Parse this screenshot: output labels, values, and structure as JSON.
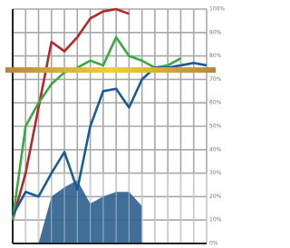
{
  "chart_data": {
    "type": "line",
    "categories": [
      null,
      null,
      null,
      null,
      null,
      null,
      null,
      null,
      null,
      null,
      null,
      null,
      null,
      null,
      null,
      null
    ],
    "series": [
      {
        "color": "#b02a2a",
        "values": [
          10,
          30,
          58,
          86,
          82,
          88,
          96,
          99,
          100,
          98,
          null,
          null,
          null,
          null,
          null,
          null
        ]
      },
      {
        "color": "#3aa845",
        "values": [
          10,
          50,
          60,
          68,
          73,
          75,
          78,
          76,
          88,
          80,
          78,
          75,
          76,
          79,
          null,
          null
        ]
      },
      {
        "color": "#1a5a96",
        "values": [
          12,
          22,
          20,
          30,
          39,
          23,
          50,
          65,
          66,
          58,
          70,
          75,
          75,
          76,
          77,
          76
        ]
      }
    ],
    "area": {
      "color": "#2c5f8c",
      "values": [
        null,
        null,
        0,
        20,
        24,
        27,
        17,
        20,
        22,
        22,
        16,
        null,
        null,
        null,
        null,
        null
      ]
    },
    "threshold": {
      "value": 74,
      "color": "#b8863b"
    },
    "ylim": [
      0,
      100
    ],
    "yticks": [
      {
        "value": 0,
        "label": "0%"
      },
      {
        "value": 10,
        "label": "10%"
      },
      {
        "value": 20,
        "label": "20%"
      },
      {
        "value": 30,
        "label": "30%"
      },
      {
        "value": 40,
        "label": "40%"
      },
      {
        "value": 50,
        "label": "50%"
      },
      {
        "value": 60,
        "label": "60%"
      },
      {
        "value": 70,
        "label": "70%"
      },
      {
        "value": 80,
        "label": "80%"
      },
      {
        "value": 90,
        "label": "90%"
      },
      {
        "value": 100,
        "label": "100%"
      }
    ],
    "grid": true
  }
}
